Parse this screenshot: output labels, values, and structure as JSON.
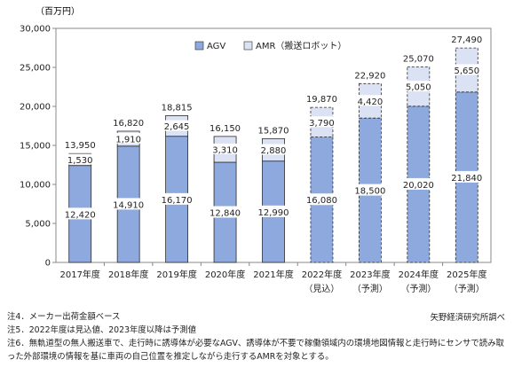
{
  "chart_data": {
    "type": "bar",
    "stacked": true,
    "unit_label": "（百万円）",
    "categories": [
      [
        "2017年度"
      ],
      [
        "2018年度"
      ],
      [
        "2019年度"
      ],
      [
        "2020年度"
      ],
      [
        "2021年度"
      ],
      [
        "2022年度",
        "（見込）"
      ],
      [
        "2023年度",
        "（予測）"
      ],
      [
        "2024年度",
        "（予測）"
      ],
      [
        "2025年度",
        "（予測）"
      ]
    ],
    "series": [
      {
        "name": "AGV",
        "values": [
          12420,
          14910,
          16170,
          12840,
          12990,
          16080,
          18500,
          20020,
          21840
        ]
      },
      {
        "name": "AMR（搬送ロボット）",
        "values": [
          1530,
          1910,
          2645,
          3310,
          2880,
          3790,
          4420,
          5050,
          5650
        ]
      }
    ],
    "totals": [
      13950,
      16820,
      18815,
      16150,
      15870,
      19870,
      22920,
      25070,
      27490
    ],
    "value_labels": {
      "agv": [
        "12,420",
        "14,910",
        "16,170",
        "12,840",
        "12,990",
        "16,080",
        "18,500",
        "20,020",
        "21,840"
      ],
      "amr": [
        "1,530",
        "1,910",
        "2,645",
        "3,310",
        "2,880",
        "3,790",
        "4,420",
        "5,050",
        "5,650"
      ],
      "total": [
        "13,950",
        "16,820",
        "18,815",
        "16,150",
        "15,870",
        "19,870",
        "22,920",
        "25,070",
        "27,490"
      ]
    },
    "forecast_from_index": 5,
    "ylim": [
      0,
      30000
    ],
    "yticks": [
      0,
      5000,
      10000,
      15000,
      20000,
      25000,
      30000
    ],
    "ytick_labels": [
      "0",
      "5,000",
      "10,000",
      "15,000",
      "20,000",
      "25,000",
      "30,000"
    ],
    "legend_position": "top-center",
    "grid": false,
    "colors": {
      "agv": "#8ea9de",
      "amr": "#dbe2f3",
      "edge": "#2b2b2b"
    }
  },
  "notes": [
    "注4．メーカー出荷金額ベース",
    "注5．2022年度は見込値、2023年度以降は予測値",
    "注6．無軌道型の無人搬送車で、走行時に誘導体が必要なAGV、誘導体が不要で稼働領域内の環境地図情報と走行時にセンサで読み取った外部環境の情報を基に車両の自己位置を推定しながら走行するAMRを対象とする。"
  ],
  "credit": "矢野経済研究所調べ"
}
